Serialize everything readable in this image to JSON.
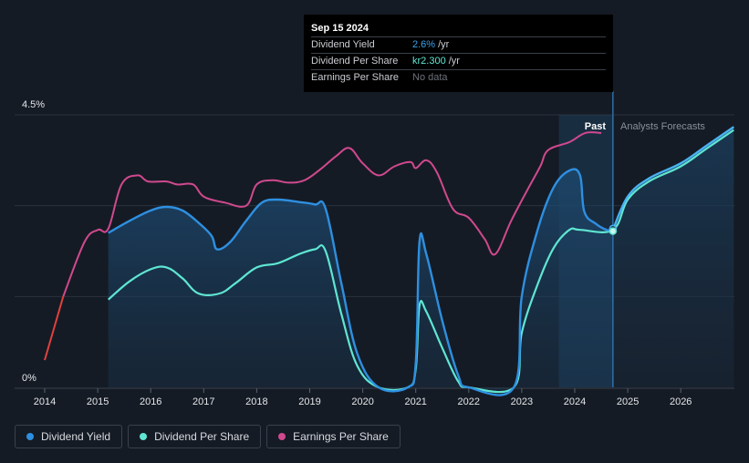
{
  "chart_data": {
    "type": "line",
    "title": "",
    "xlabel": "",
    "ylabel": "",
    "ylim": [
      0,
      4.5
    ],
    "y_tick_labels": [
      "4.5%",
      "0%"
    ],
    "x_tick_labels": [
      "2014",
      "2015",
      "2016",
      "2017",
      "2018",
      "2019",
      "2020",
      "2021",
      "2022",
      "2023",
      "2024",
      "2025",
      "2026"
    ],
    "past_label": "Past",
    "forecast_label": "Analysts Forecasts",
    "series": [
      {
        "name": "Dividend Yield",
        "color": "#2e8fe0",
        "points": [
          [
            2015.2,
            2.55
          ],
          [
            2015.6,
            2.75
          ],
          [
            2016.0,
            2.92
          ],
          [
            2016.3,
            2.98
          ],
          [
            2016.6,
            2.92
          ],
          [
            2016.9,
            2.72
          ],
          [
            2017.15,
            2.5
          ],
          [
            2017.25,
            2.28
          ],
          [
            2017.5,
            2.4
          ],
          [
            2017.8,
            2.75
          ],
          [
            2018.1,
            3.05
          ],
          [
            2018.4,
            3.1
          ],
          [
            2018.8,
            3.06
          ],
          [
            2019.1,
            3.02
          ],
          [
            2019.3,
            2.95
          ],
          [
            2019.6,
            1.7
          ],
          [
            2019.9,
            0.55
          ],
          [
            2020.3,
            0.0
          ],
          [
            2020.85,
            0.0
          ],
          [
            2021.0,
            0.4
          ],
          [
            2021.07,
            2.4
          ],
          [
            2021.2,
            2.2
          ],
          [
            2021.5,
            1.1
          ],
          [
            2021.8,
            0.2
          ],
          [
            2022.0,
            0.0
          ],
          [
            2022.85,
            0.0
          ],
          [
            2023.0,
            1.5
          ],
          [
            2023.3,
            2.6
          ],
          [
            2023.6,
            3.3
          ],
          [
            2023.9,
            3.58
          ],
          [
            2024.1,
            3.5
          ],
          [
            2024.18,
            2.9
          ],
          [
            2024.4,
            2.7
          ],
          [
            2024.6,
            2.6
          ],
          [
            2024.72,
            2.6
          ],
          [
            2025.0,
            3.15
          ],
          [
            2025.4,
            3.45
          ],
          [
            2026.0,
            3.7
          ],
          [
            2026.5,
            4.0
          ],
          [
            2027.0,
            4.3
          ]
        ]
      },
      {
        "name": "Dividend Per Share",
        "color": "#5fe6d2",
        "points": [
          [
            2015.2,
            1.45
          ],
          [
            2015.6,
            1.75
          ],
          [
            2016.0,
            1.95
          ],
          [
            2016.3,
            1.98
          ],
          [
            2016.6,
            1.8
          ],
          [
            2016.9,
            1.55
          ],
          [
            2017.3,
            1.55
          ],
          [
            2017.6,
            1.72
          ],
          [
            2018.0,
            1.98
          ],
          [
            2018.4,
            2.05
          ],
          [
            2018.8,
            2.2
          ],
          [
            2019.1,
            2.28
          ],
          [
            2019.3,
            2.25
          ],
          [
            2019.6,
            1.2
          ],
          [
            2019.9,
            0.35
          ],
          [
            2020.3,
            0.0
          ],
          [
            2020.85,
            0.0
          ],
          [
            2021.0,
            0.3
          ],
          [
            2021.07,
            1.35
          ],
          [
            2021.2,
            1.25
          ],
          [
            2021.5,
            0.65
          ],
          [
            2021.8,
            0.1
          ],
          [
            2022.0,
            0.0
          ],
          [
            2022.85,
            0.0
          ],
          [
            2023.0,
            0.9
          ],
          [
            2023.3,
            1.7
          ],
          [
            2023.6,
            2.3
          ],
          [
            2023.9,
            2.6
          ],
          [
            2024.1,
            2.6
          ],
          [
            2024.72,
            2.6
          ],
          [
            2025.0,
            3.1
          ],
          [
            2025.4,
            3.4
          ],
          [
            2026.0,
            3.65
          ],
          [
            2026.5,
            3.95
          ],
          [
            2027.0,
            4.25
          ]
        ]
      },
      {
        "name": "Earnings Per Share",
        "color": "#d0498f",
        "points": [
          [
            2014.0,
            0.45
          ],
          [
            2014.35,
            1.5
          ],
          [
            2014.75,
            2.4
          ],
          [
            2015.0,
            2.6
          ],
          [
            2015.2,
            2.62
          ],
          [
            2015.45,
            3.35
          ],
          [
            2015.75,
            3.5
          ],
          [
            2015.95,
            3.4
          ],
          [
            2016.3,
            3.4
          ],
          [
            2016.5,
            3.35
          ],
          [
            2016.8,
            3.35
          ],
          [
            2017.0,
            3.15
          ],
          [
            2017.4,
            3.05
          ],
          [
            2017.8,
            3.0
          ],
          [
            2018.0,
            3.35
          ],
          [
            2018.3,
            3.42
          ],
          [
            2018.6,
            3.38
          ],
          [
            2018.9,
            3.42
          ],
          [
            2019.2,
            3.6
          ],
          [
            2019.5,
            3.82
          ],
          [
            2019.75,
            3.95
          ],
          [
            2020.0,
            3.7
          ],
          [
            2020.3,
            3.5
          ],
          [
            2020.6,
            3.65
          ],
          [
            2020.9,
            3.72
          ],
          [
            2021.0,
            3.62
          ],
          [
            2021.2,
            3.75
          ],
          [
            2021.4,
            3.55
          ],
          [
            2021.7,
            2.95
          ],
          [
            2022.0,
            2.8
          ],
          [
            2022.3,
            2.45
          ],
          [
            2022.5,
            2.2
          ],
          [
            2022.8,
            2.75
          ],
          [
            2023.1,
            3.25
          ],
          [
            2023.35,
            3.65
          ],
          [
            2023.5,
            3.92
          ],
          [
            2023.9,
            4.05
          ],
          [
            2024.2,
            4.2
          ],
          [
            2024.5,
            4.2
          ]
        ]
      }
    ]
  },
  "tooltip": {
    "date": "Sep 15 2024",
    "rows": [
      {
        "label": "Dividend Yield",
        "value": "2.6%",
        "unit": "/yr"
      },
      {
        "label": "Dividend Per Share",
        "value": "kr2.300",
        "unit": "/yr"
      },
      {
        "label": "Earnings Per Share",
        "value": "No data",
        "unit": ""
      }
    ]
  },
  "legend": [
    {
      "label": "Dividend Yield",
      "color": "#2e8fe0"
    },
    {
      "label": "Dividend Per Share",
      "color": "#5fe6d2"
    },
    {
      "label": "Earnings Per Share",
      "color": "#d0498f"
    }
  ]
}
